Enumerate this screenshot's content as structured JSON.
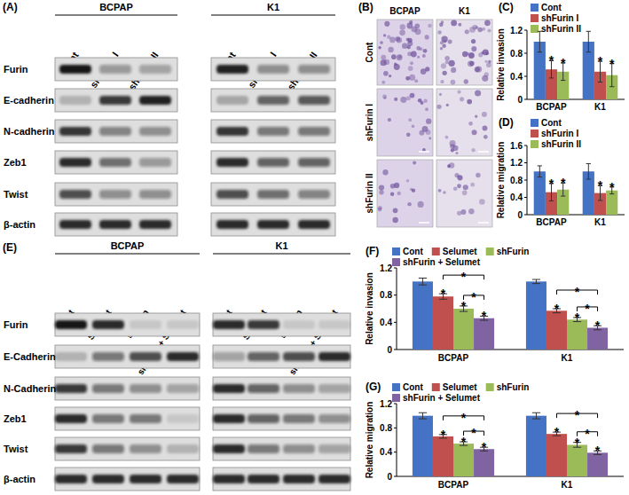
{
  "chart_data": [
    {
      "type": "bar",
      "title": "(C)",
      "y_label": "Relative invasion",
      "categories": [
        "BCPAP",
        "K1"
      ],
      "series": [
        {
          "name": "Cont",
          "color": "#4472c4",
          "values": [
            1.0,
            1.0
          ],
          "errors": [
            0.18,
            0.18
          ]
        },
        {
          "name": "shFurin I",
          "color": "#c0504d",
          "values": [
            0.52,
            0.48
          ],
          "errors": [
            0.15,
            0.18
          ],
          "annotations": [
            "*",
            "*"
          ]
        },
        {
          "name": "shFurin II",
          "color": "#9bbb59",
          "values": [
            0.48,
            0.42
          ],
          "errors": [
            0.15,
            0.2
          ],
          "annotations": [
            "*",
            "*"
          ]
        }
      ],
      "ylim": [
        0,
        1.2
      ],
      "yticks": [
        0,
        0.4,
        0.8,
        1.2
      ],
      "grid": false,
      "legend": "top"
    },
    {
      "type": "bar",
      "title": "(D)",
      "y_label": "Relative migration",
      "categories": [
        "BCPAP",
        "K1"
      ],
      "series": [
        {
          "name": "Cont",
          "color": "#4472c4",
          "values": [
            1.0,
            1.0
          ],
          "errors": [
            0.13,
            0.18
          ]
        },
        {
          "name": "shFurin I",
          "color": "#c0504d",
          "values": [
            0.52,
            0.5
          ],
          "errors": [
            0.2,
            0.17
          ],
          "annotations": [
            "*",
            "*"
          ]
        },
        {
          "name": "shFurin II",
          "color": "#9bbb59",
          "values": [
            0.58,
            0.56
          ],
          "errors": [
            0.15,
            0.08
          ],
          "annotations": [
            "*",
            "*"
          ]
        }
      ],
      "ylim": [
        0,
        1.6
      ],
      "yticks": [
        0,
        0.4,
        0.8,
        1.2,
        1.6
      ],
      "grid": false,
      "legend": "top"
    },
    {
      "type": "bar",
      "title": "(F)",
      "y_label": "Relative invasion",
      "categories": [
        "BCPAP",
        "K1"
      ],
      "series": [
        {
          "name": "Cont",
          "color": "#4472c4",
          "values": [
            1.0,
            1.0
          ],
          "errors": [
            0.05,
            0.03
          ]
        },
        {
          "name": "Selumet",
          "color": "#c0504d",
          "values": [
            0.78,
            0.57
          ],
          "errors": [
            0.04,
            0.03
          ],
          "annotations": [
            "*",
            "*"
          ]
        },
        {
          "name": "shFurin",
          "color": "#9bbb59",
          "values": [
            0.6,
            0.44
          ],
          "errors": [
            0.04,
            0.03
          ],
          "annotations": [
            "*",
            "*"
          ]
        },
        {
          "name": "shFurin + Selumet",
          "color": "#8064a2",
          "values": [
            0.46,
            0.32
          ],
          "errors": [
            0.03,
            0.03
          ],
          "annotations": [
            "*",
            "*"
          ]
        }
      ],
      "brackets": [
        {
          "series": [
            2,
            3
          ],
          "label": "*"
        },
        {
          "series": [
            1,
            3
          ],
          "label": "*"
        }
      ],
      "ylim": [
        0,
        1.2
      ],
      "yticks": [
        0,
        0.4,
        0.8,
        1.2
      ],
      "grid": false,
      "legend": "top"
    },
    {
      "type": "bar",
      "title": "(G)",
      "y_label": "Relative migration",
      "categories": [
        "BCPAP",
        "K1"
      ],
      "series": [
        {
          "name": "Cont",
          "color": "#4472c4",
          "values": [
            1.0,
            1.0
          ],
          "errors": [
            0.05,
            0.05
          ]
        },
        {
          "name": "Selumet",
          "color": "#c0504d",
          "values": [
            0.66,
            0.7
          ],
          "errors": [
            0.03,
            0.03
          ],
          "annotations": [
            "*",
            "*"
          ]
        },
        {
          "name": "shFurin",
          "color": "#9bbb59",
          "values": [
            0.54,
            0.52
          ],
          "errors": [
            0.03,
            0.04
          ],
          "annotations": [
            "*",
            "*"
          ]
        },
        {
          "name": "shFurin + Selumet",
          "color": "#8064a2",
          "values": [
            0.45,
            0.39
          ],
          "errors": [
            0.03,
            0.03
          ],
          "annotations": [
            "*",
            "*"
          ]
        }
      ],
      "brackets": [
        {
          "series": [
            2,
            3
          ],
          "label": "*"
        },
        {
          "series": [
            1,
            3
          ],
          "label": "*"
        }
      ],
      "ylim": [
        0,
        1.2
      ],
      "yticks": [
        0,
        0.4,
        0.8,
        1.2
      ],
      "grid": false,
      "legend": "top"
    }
  ],
  "blots": [
    {
      "title": "(A)",
      "groups": [
        "BCPAP",
        "K1"
      ],
      "lanes": [
        "Cont",
        "shFurin I",
        "shFurin II"
      ],
      "rows": [
        "Furin",
        "E-cadherin",
        "N-cadherin",
        "Zeb1",
        "Twist",
        "β-actin"
      ],
      "band_intensity": [
        [
          [
            1.0,
            0.35,
            0.3
          ],
          [
            0.2,
            0.8,
            0.95
          ],
          [
            0.85,
            0.45,
            0.4
          ],
          [
            0.9,
            0.55,
            0.35
          ],
          [
            0.7,
            0.4,
            0.4
          ],
          [
            0.9,
            0.9,
            0.9
          ]
        ],
        [
          [
            0.95,
            0.4,
            0.4
          ],
          [
            0.25,
            0.6,
            0.65
          ],
          [
            0.85,
            0.5,
            0.5
          ],
          [
            0.9,
            0.6,
            0.6
          ],
          [
            0.7,
            0.55,
            0.45
          ],
          [
            0.9,
            0.9,
            0.9
          ]
        ]
      ]
    },
    {
      "title": "(E)",
      "groups": [
        "BCPAP",
        "K1"
      ],
      "lanes": [
        "Cont",
        "Selumet",
        "shFurin",
        "shFurin + Selumet"
      ],
      "rows": [
        "Furin",
        "E-Cadherin",
        "N-Cadherin",
        "Zeb1",
        "Twist",
        "β-actin"
      ],
      "band_intensity": [
        [
          [
            1.0,
            0.9,
            0.1,
            0.1
          ],
          [
            0.2,
            0.5,
            0.7,
            0.9
          ],
          [
            0.8,
            0.5,
            0.4,
            0.3
          ],
          [
            0.9,
            0.5,
            0.5,
            0.1
          ],
          [
            0.8,
            0.5,
            0.4,
            0.2
          ],
          [
            0.9,
            0.9,
            0.9,
            0.9
          ]
        ],
        [
          [
            0.9,
            0.8,
            0.1,
            0.1
          ],
          [
            0.3,
            0.6,
            0.7,
            0.9
          ],
          [
            0.9,
            0.6,
            0.4,
            0.3
          ],
          [
            0.9,
            0.6,
            0.5,
            0.4
          ],
          [
            0.9,
            0.5,
            0.4,
            0.3
          ],
          [
            0.9,
            0.9,
            0.9,
            0.9
          ]
        ]
      ]
    }
  ],
  "micrographs": {
    "title": "(B)",
    "columns": [
      "BCPAP",
      "K1"
    ],
    "rows": [
      "Cont",
      "shFurin I",
      "shFurin II"
    ]
  }
}
